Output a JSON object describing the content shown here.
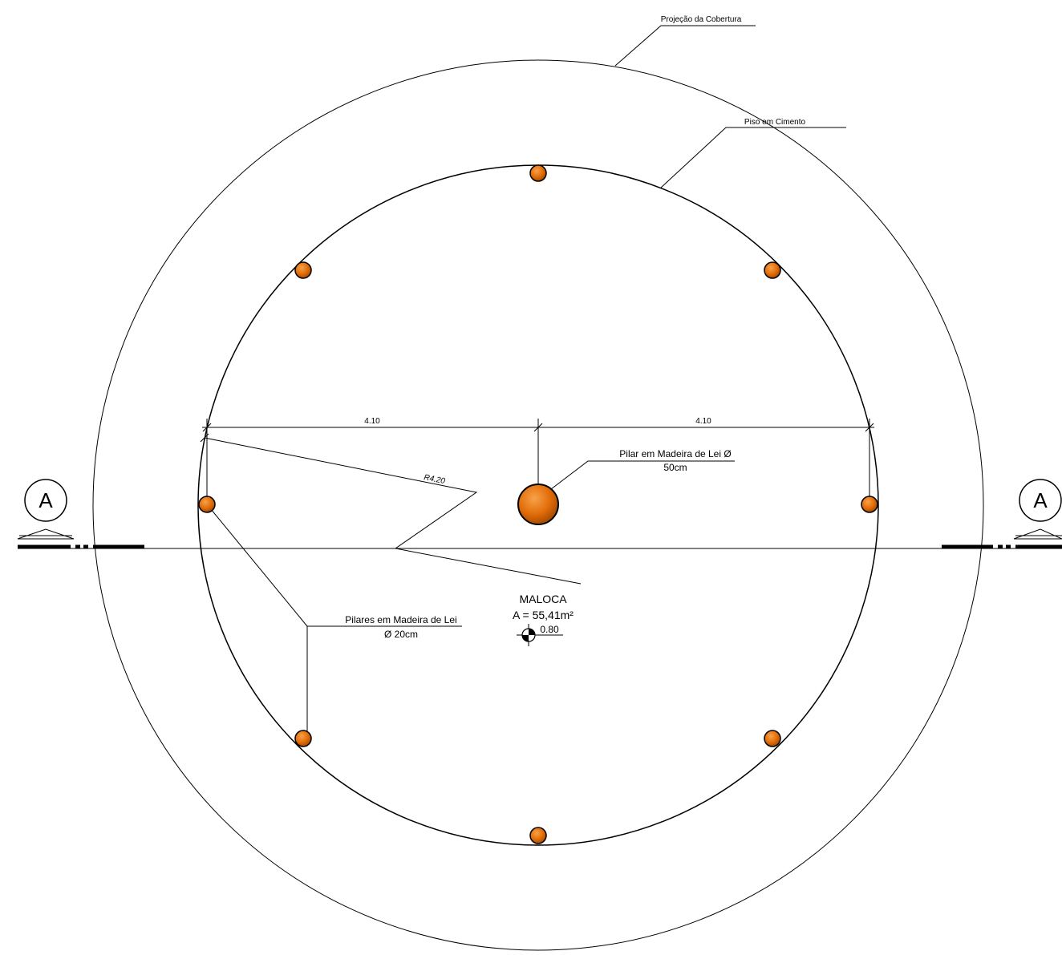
{
  "labels": {
    "roof_projection": "Projeção da Cobertura",
    "floor": "Piso em Cimento",
    "center_pillar_line1": "Pilar em Madeira de Lei Ø",
    "center_pillar_line2": "50cm",
    "perimeter_pillars_line1": "Pilares em Madeira de Lei",
    "perimeter_pillars_line2": "Ø 20cm",
    "room_name": "MALOCA",
    "room_area": "A = 55,41m²",
    "level": "0.80"
  },
  "dimensions": {
    "left": "4.10",
    "right": "4.10",
    "radius": "R4.20"
  },
  "section_markers": {
    "left": "A",
    "right": "A"
  },
  "colors": {
    "pillar_fill": "#e36e0a",
    "line": "#000000"
  }
}
